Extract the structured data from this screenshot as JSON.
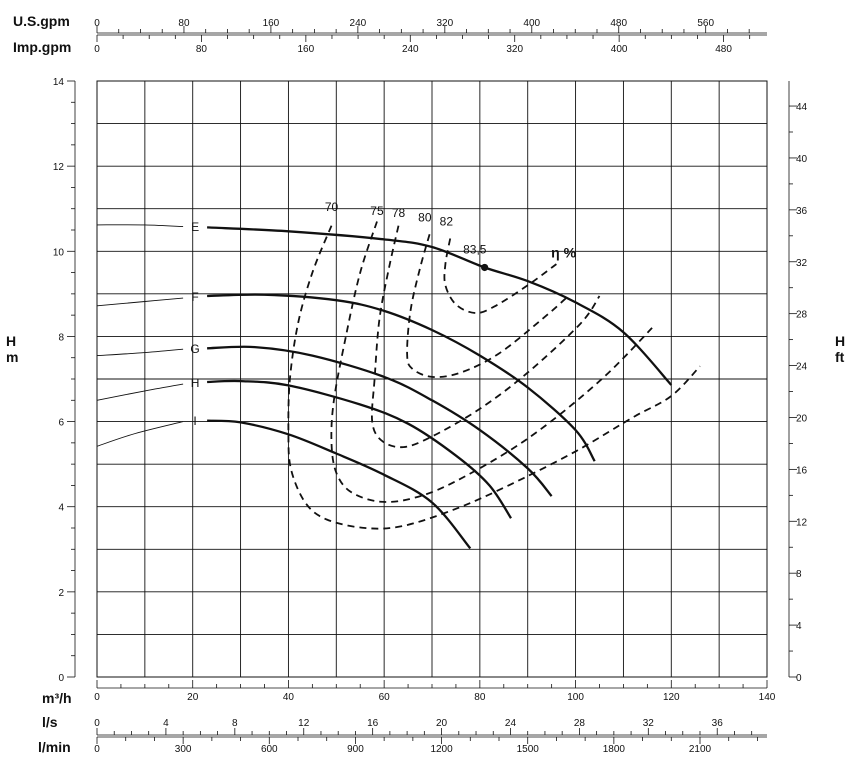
{
  "chart_data": {
    "type": "line",
    "x_axis": {
      "label": "m³/h",
      "range": [
        0,
        140
      ],
      "ticks": [
        0,
        20,
        40,
        60,
        80,
        100,
        120,
        140
      ]
    },
    "y_axis_left": {
      "label_top": "H",
      "label_bottom": "m",
      "range": [
        0,
        14
      ],
      "ticks": [
        0,
        2,
        4,
        6,
        8,
        10,
        12,
        14
      ]
    },
    "y_axis_right": {
      "label_top": "H",
      "label_bottom": "ft",
      "range": [
        0,
        45.93
      ],
      "ticks": [
        0,
        4,
        8,
        12,
        16,
        20,
        24,
        28,
        32,
        36,
        40,
        44
      ]
    },
    "top_axes": [
      {
        "label": "U.S.gpm",
        "factor": 4.4029,
        "ticks": [
          0,
          80,
          160,
          240,
          320,
          400,
          480,
          560
        ]
      },
      {
        "label": "Imp.gpm",
        "factor": 3.6662,
        "ticks": [
          0,
          80,
          160,
          240,
          320,
          400,
          480
        ]
      }
    ],
    "bottom_axes": [
      {
        "label": "l/s",
        "factor": 0.27778,
        "ticks": [
          0,
          4,
          8,
          12,
          16,
          20,
          24,
          28,
          32,
          36
        ]
      },
      {
        "label": "l/min",
        "factor": 16.6667,
        "ticks": [
          0,
          300,
          600,
          900,
          1200,
          1500,
          1800,
          2100
        ]
      }
    ],
    "grid": true,
    "series": [
      {
        "name": "E",
        "tail": [
          [
            0,
            10.62
          ],
          [
            10,
            10.62
          ],
          [
            18,
            10.58
          ]
        ],
        "points": [
          [
            23,
            10.56
          ],
          [
            40,
            10.47
          ],
          [
            60,
            10.28
          ],
          [
            70,
            10.1
          ],
          [
            81,
            9.62
          ],
          [
            90,
            9.3
          ],
          [
            100,
            8.8
          ],
          [
            110,
            8.1
          ],
          [
            120,
            6.86
          ]
        ]
      },
      {
        "name": "F",
        "tail": [
          [
            0,
            8.72
          ],
          [
            10,
            8.82
          ],
          [
            18,
            8.9
          ]
        ],
        "points": [
          [
            23,
            8.95
          ],
          [
            35,
            8.98
          ],
          [
            50,
            8.85
          ],
          [
            60,
            8.6
          ],
          [
            70,
            8.15
          ],
          [
            80,
            7.55
          ],
          [
            90,
            6.8
          ],
          [
            100,
            5.8
          ],
          [
            104,
            5.07
          ]
        ]
      },
      {
        "name": "G",
        "tail": [
          [
            0,
            7.55
          ],
          [
            10,
            7.62
          ],
          [
            18,
            7.7
          ]
        ],
        "points": [
          [
            23,
            7.72
          ],
          [
            33,
            7.75
          ],
          [
            45,
            7.55
          ],
          [
            60,
            7.05
          ],
          [
            70,
            6.5
          ],
          [
            80,
            5.8
          ],
          [
            90,
            4.9
          ],
          [
            95,
            4.25
          ]
        ]
      },
      {
        "name": "H",
        "tail": [
          [
            0,
            6.5
          ],
          [
            10,
            6.72
          ],
          [
            18,
            6.88
          ]
        ],
        "points": [
          [
            23,
            6.93
          ],
          [
            30,
            6.95
          ],
          [
            40,
            6.85
          ],
          [
            55,
            6.4
          ],
          [
            65,
            5.95
          ],
          [
            75,
            5.2
          ],
          [
            82,
            4.5
          ],
          [
            86.5,
            3.73
          ]
        ]
      },
      {
        "name": "I",
        "tail": [
          [
            0,
            5.42
          ],
          [
            8,
            5.72
          ],
          [
            18,
            6.0
          ]
        ],
        "points": [
          [
            23,
            6.02
          ],
          [
            30,
            5.98
          ],
          [
            40,
            5.7
          ],
          [
            50,
            5.25
          ],
          [
            60,
            4.75
          ],
          [
            70,
            4.1
          ],
          [
            78,
            3.02
          ]
        ]
      }
    ],
    "efficiency_curves": [
      {
        "label": "70",
        "label_at": [
          49,
          10.95
        ],
        "points": [
          [
            49,
            10.6
          ],
          [
            45,
            9.5
          ],
          [
            42,
            8.3
          ],
          [
            40.3,
            7.0
          ],
          [
            40,
            5.8
          ],
          [
            40.5,
            4.9
          ],
          [
            43.5,
            4.1
          ],
          [
            48,
            3.7
          ],
          [
            56,
            3.5
          ],
          [
            64,
            3.55
          ],
          [
            75,
            3.95
          ],
          [
            86,
            4.5
          ],
          [
            100,
            5.3
          ],
          [
            112,
            6.1
          ],
          [
            120,
            6.6
          ],
          [
            126,
            7.3
          ]
        ]
      },
      {
        "label": "75",
        "label_at": [
          58.5,
          10.85
        ],
        "points": [
          [
            58.5,
            10.7
          ],
          [
            55,
            9.5
          ],
          [
            52,
            8.0
          ],
          [
            49.5,
            6.5
          ],
          [
            49,
            5.5
          ],
          [
            50,
            4.8
          ],
          [
            53,
            4.35
          ],
          [
            59,
            4.12
          ],
          [
            66,
            4.2
          ],
          [
            75,
            4.6
          ],
          [
            90,
            5.6
          ],
          [
            105,
            6.95
          ],
          [
            116,
            8.2
          ]
        ]
      },
      {
        "label": "78",
        "label_at": [
          63,
          10.8
        ],
        "points": [
          [
            63,
            10.6
          ],
          [
            61,
            9.6
          ],
          [
            59,
            8.4
          ],
          [
            58,
            7.0
          ],
          [
            57.5,
            6.0
          ],
          [
            59.5,
            5.55
          ],
          [
            64,
            5.4
          ],
          [
            70,
            5.65
          ],
          [
            80,
            6.3
          ],
          [
            90,
            7.15
          ],
          [
            101,
            8.3
          ],
          [
            105,
            8.95
          ]
        ]
      },
      {
        "label": "80",
        "label_at": [
          68.5,
          10.7
        ],
        "points": [
          [
            69.5,
            10.4
          ],
          [
            67.5,
            9.6
          ],
          [
            65.5,
            8.6
          ],
          [
            64.8,
            7.6
          ],
          [
            65.8,
            7.25
          ],
          [
            70,
            7.05
          ],
          [
            76,
            7.15
          ],
          [
            84,
            7.6
          ],
          [
            94,
            8.5
          ],
          [
            98,
            8.9
          ]
        ]
      },
      {
        "label": "82",
        "label_at": [
          73,
          10.6
        ],
        "points": [
          [
            73.8,
            10.3
          ],
          [
            72.8,
            9.7
          ],
          [
            72.8,
            9.2
          ],
          [
            75,
            8.75
          ],
          [
            79,
            8.55
          ],
          [
            83,
            8.7
          ],
          [
            90,
            9.2
          ],
          [
            96,
            9.7
          ]
        ]
      }
    ],
    "best_efficiency_point": {
      "label": "83,5",
      "x": 81,
      "y": 9.62,
      "label_at": [
        76.5,
        9.95
      ]
    },
    "efficiency_legend": {
      "text": "η %",
      "label_at": [
        97.5,
        9.85
      ]
    }
  }
}
